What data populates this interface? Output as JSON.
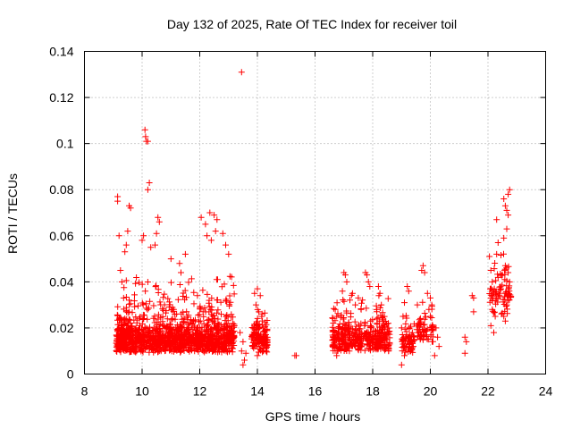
{
  "chart_data": {
    "type": "scatter",
    "title": "Day 132 of 2025, Rate Of TEC Index for receiver toil",
    "xlabel": "GPS time / hours",
    "ylabel": "ROTI / TECUs",
    "xlim": [
      8,
      24
    ],
    "ylim": [
      0,
      0.14
    ],
    "xticks": [
      "8",
      "10",
      "12",
      "14",
      "16",
      "18",
      "20",
      "22",
      "24"
    ],
    "yticks": [
      "0",
      "0.02",
      "0.04",
      "0.06",
      "0.08",
      "0.1",
      "0.12",
      "0.14"
    ],
    "grid": true,
    "marker": "plus",
    "color": "#ff0000",
    "series": [
      {
        "name": "ROTI",
        "points": [
          [
            9.15,
            0.077
          ],
          [
            9.15,
            0.075
          ],
          [
            9.2,
            0.06
          ],
          [
            9.25,
            0.045
          ],
          [
            9.3,
            0.04
          ],
          [
            9.55,
            0.073
          ],
          [
            9.6,
            0.072
          ],
          [
            9.5,
            0.062
          ],
          [
            9.45,
            0.056
          ],
          [
            9.4,
            0.053
          ],
          [
            10.1,
            0.106
          ],
          [
            10.12,
            0.103
          ],
          [
            10.15,
            0.101
          ],
          [
            10.2,
            0.101
          ],
          [
            10.25,
            0.083
          ],
          [
            10.2,
            0.08
          ],
          [
            10.05,
            0.06
          ],
          [
            10.0,
            0.058
          ],
          [
            10.3,
            0.055
          ],
          [
            10.55,
            0.068
          ],
          [
            10.6,
            0.066
          ],
          [
            10.5,
            0.061
          ],
          [
            10.45,
            0.056
          ],
          [
            11.0,
            0.05
          ],
          [
            11.3,
            0.048
          ],
          [
            11.5,
            0.052
          ],
          [
            11.35,
            0.044
          ],
          [
            12.05,
            0.068
          ],
          [
            12.2,
            0.065
          ],
          [
            12.35,
            0.07
          ],
          [
            12.5,
            0.069
          ],
          [
            12.6,
            0.067
          ],
          [
            12.25,
            0.06
          ],
          [
            12.4,
            0.058
          ],
          [
            12.55,
            0.062
          ],
          [
            12.8,
            0.061
          ],
          [
            12.9,
            0.056
          ],
          [
            13.0,
            0.052
          ],
          [
            13.45,
            0.131
          ],
          [
            13.4,
            0.018
          ],
          [
            13.5,
            0.014
          ],
          [
            13.45,
            0.01
          ],
          [
            13.55,
            0.006
          ],
          [
            13.5,
            0.004
          ],
          [
            13.6,
            0.009
          ],
          [
            13.9,
            0.035
          ],
          [
            14.0,
            0.037
          ],
          [
            14.1,
            0.034
          ],
          [
            13.95,
            0.03
          ],
          [
            14.05,
            0.027
          ],
          [
            14.15,
            0.025
          ],
          [
            14.2,
            0.02
          ],
          [
            13.85,
            0.012
          ],
          [
            14.25,
            0.015
          ],
          [
            14.3,
            0.01
          ],
          [
            14.0,
            0.008
          ],
          [
            15.3,
            0.008
          ],
          [
            15.35,
            0.008
          ],
          [
            16.7,
            0.028
          ],
          [
            16.75,
            0.025
          ],
          [
            16.8,
            0.02
          ],
          [
            16.7,
            0.015
          ],
          [
            16.85,
            0.012
          ],
          [
            16.75,
            0.008
          ],
          [
            17.0,
            0.044
          ],
          [
            17.05,
            0.043
          ],
          [
            17.1,
            0.04
          ],
          [
            16.95,
            0.036
          ],
          [
            17.3,
            0.035
          ],
          [
            17.4,
            0.03
          ],
          [
            17.5,
            0.033
          ],
          [
            17.6,
            0.028
          ],
          [
            17.75,
            0.044
          ],
          [
            17.8,
            0.043
          ],
          [
            17.85,
            0.04
          ],
          [
            17.9,
            0.038
          ],
          [
            18.2,
            0.038
          ],
          [
            18.25,
            0.035
          ],
          [
            18.3,
            0.03
          ],
          [
            18.4,
            0.022
          ],
          [
            18.5,
            0.015
          ],
          [
            18.55,
            0.01
          ],
          [
            19.2,
            0.038
          ],
          [
            19.25,
            0.036
          ],
          [
            19.1,
            0.031
          ],
          [
            19.05,
            0.025
          ],
          [
            19.0,
            0.02
          ],
          [
            19.05,
            0.013
          ],
          [
            19.1,
            0.008
          ],
          [
            19.0,
            0.004
          ],
          [
            19.3,
            0.01
          ],
          [
            19.55,
            0.03
          ],
          [
            19.7,
            0.045
          ],
          [
            19.75,
            0.047
          ],
          [
            19.8,
            0.044
          ],
          [
            19.6,
            0.022
          ],
          [
            19.65,
            0.015
          ],
          [
            19.9,
            0.035
          ],
          [
            20.0,
            0.033
          ],
          [
            20.05,
            0.03
          ],
          [
            19.95,
            0.028
          ],
          [
            20.0,
            0.025
          ],
          [
            20.2,
            0.02
          ],
          [
            20.25,
            0.016
          ],
          [
            20.3,
            0.012
          ],
          [
            20.15,
            0.008
          ],
          [
            21.2,
            0.016
          ],
          [
            21.25,
            0.014
          ],
          [
            21.2,
            0.009
          ],
          [
            21.45,
            0.034
          ],
          [
            21.5,
            0.033
          ],
          [
            21.5,
            0.027
          ],
          [
            22.05,
            0.051
          ],
          [
            22.1,
            0.045
          ],
          [
            22.15,
            0.04
          ],
          [
            22.1,
            0.033
          ],
          [
            22.15,
            0.028
          ],
          [
            22.1,
            0.021
          ],
          [
            22.2,
            0.018
          ],
          [
            22.25,
            0.025
          ],
          [
            22.3,
            0.052
          ],
          [
            22.35,
            0.057
          ],
          [
            22.3,
            0.067
          ],
          [
            22.55,
            0.076
          ],
          [
            22.6,
            0.073
          ],
          [
            22.65,
            0.071
          ],
          [
            22.7,
            0.069
          ],
          [
            22.75,
            0.08
          ],
          [
            22.7,
            0.078
          ],
          [
            22.65,
            0.063
          ],
          [
            22.55,
            0.059
          ],
          [
            22.6,
            0.047
          ],
          [
            22.7,
            0.044
          ],
          [
            22.75,
            0.04
          ],
          [
            22.6,
            0.035
          ],
          [
            22.65,
            0.03
          ],
          [
            22.55,
            0.025
          ],
          [
            22.6,
            0.023
          ],
          [
            22.5,
            0.043
          ]
        ],
        "dense_clusters": [
          {
            "x_range": [
              9.1,
              13.2
            ],
            "y_range": [
              0.005,
              0.045
            ],
            "count": 1300,
            "y_mode": 0.016
          },
          {
            "x_range": [
              13.8,
              14.35
            ],
            "y_range": [
              0.005,
              0.033
            ],
            "count": 130,
            "y_mode": 0.016
          },
          {
            "x_range": [
              16.6,
              18.6
            ],
            "y_range": [
              0.006,
              0.04
            ],
            "count": 420,
            "y_mode": 0.016
          },
          {
            "x_range": [
              19.0,
              19.45
            ],
            "y_range": [
              0.005,
              0.03
            ],
            "count": 70,
            "y_mode": 0.015
          },
          {
            "x_range": [
              19.5,
              20.1
            ],
            "y_range": [
              0.01,
              0.035
            ],
            "count": 60,
            "y_mode": 0.02
          },
          {
            "x_range": [
              22.05,
              22.8
            ],
            "y_range": [
              0.02,
              0.055
            ],
            "count": 80,
            "y_mode": 0.035
          }
        ]
      }
    ]
  }
}
